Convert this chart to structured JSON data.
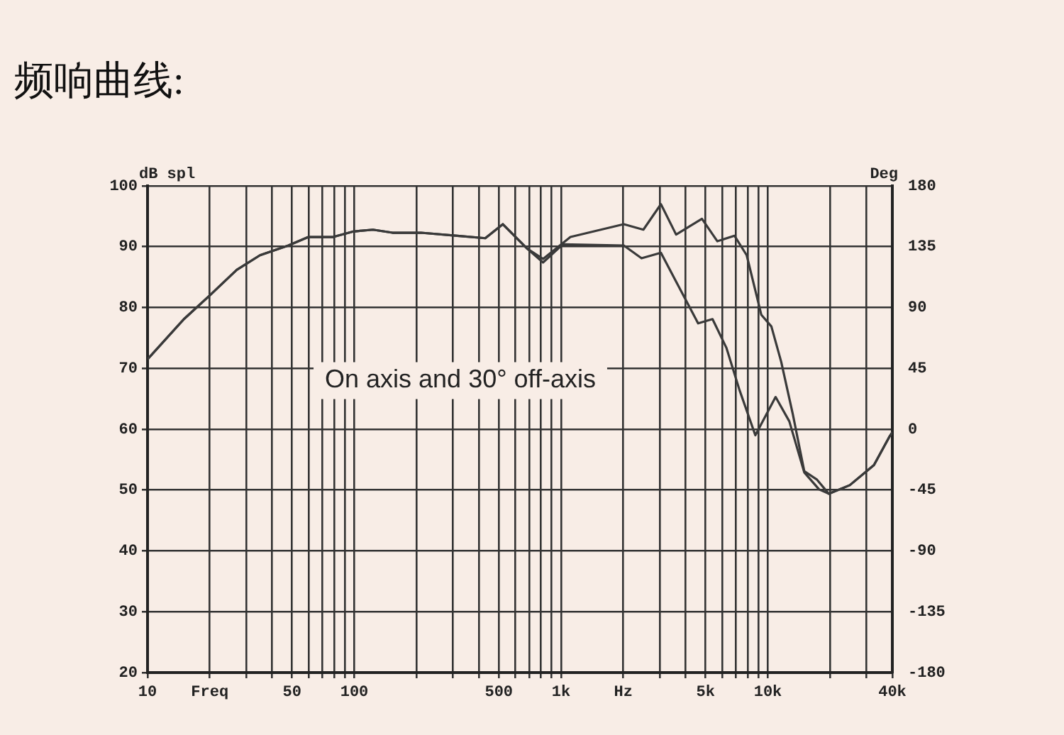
{
  "chart_data": {
    "type": "line",
    "title": "频响曲线:",
    "ylabel": "dB spl",
    "y2label": "Deg",
    "annotations": [
      "On axis and 30° off-axis"
    ],
    "log": "x",
    "grid": true,
    "legend": false,
    "marker": "none",
    "line_style": "solid",
    "xlim": [
      10,
      40000
    ],
    "ylim": [
      20,
      100
    ],
    "y2lim": [
      -180,
      180
    ],
    "xticks": [
      10,
      {
        "value": 20,
        "label": "Freq"
      },
      {
        "value": 30,
        "label": null
      },
      {
        "value": 40,
        "label": null
      },
      50,
      {
        "value": 60,
        "label": null
      },
      {
        "value": 70,
        "label": null
      },
      {
        "value": 80,
        "label": null
      },
      {
        "value": 90,
        "label": null
      },
      100,
      {
        "value": 200,
        "label": null
      },
      {
        "value": 300,
        "label": null
      },
      {
        "value": 400,
        "label": null
      },
      500,
      {
        "value": 600,
        "label": null
      },
      {
        "value": 700,
        "label": null
      },
      {
        "value": 800,
        "label": null
      },
      {
        "value": 900,
        "label": null
      },
      {
        "value": 1000,
        "label": "1k"
      },
      {
        "value": 2000,
        "label": "Hz"
      },
      {
        "value": 3000,
        "label": null
      },
      {
        "value": 4000,
        "label": null
      },
      {
        "value": 5000,
        "label": "5k"
      },
      {
        "value": 6000,
        "label": null
      },
      {
        "value": 7000,
        "label": null
      },
      {
        "value": 8000,
        "label": null
      },
      {
        "value": 9000,
        "label": null
      },
      {
        "value": 10000,
        "label": "10k"
      },
      {
        "value": 20000,
        "label": null
      },
      {
        "value": 30000,
        "label": null
      },
      {
        "value": 40000,
        "label": "40k"
      }
    ],
    "yticks": [
      20,
      30,
      40,
      50,
      60,
      70,
      80,
      90,
      100
    ],
    "y2ticks": [
      -180,
      -135,
      -90,
      -45,
      0,
      45,
      90,
      135,
      180
    ],
    "series": [
      {
        "color": "#3a3a3a",
        "x": [
          10,
          15,
          20,
          27,
          35,
          48,
          60,
          79,
          99,
          123,
          153,
          210,
          315,
          430,
          523,
          685,
          818,
          1110,
          2010,
          2500,
          3040,
          3600,
          4800,
          5700,
          6900,
          7900,
          9300,
          10400,
          11600,
          13200,
          15000,
          17300,
          19700,
          24900,
          32600,
          38600,
          40000
        ],
        "values": [
          71.5,
          78.1,
          82,
          86.2,
          88.6,
          90.2,
          91.6,
          91.6,
          92.5,
          92.8,
          92.3,
          92.3,
          91.8,
          91.4,
          93.7,
          89.7,
          88,
          91.6,
          93.7,
          92.8,
          97,
          92,
          94.6,
          90.9,
          91.8,
          88.6,
          78.8,
          76.9,
          71.1,
          62.5,
          53.1,
          51.7,
          49.4,
          50.8,
          54.1,
          58.7,
          59.5
        ]
      },
      {
        "color": "#3a3a3a",
        "x": [
          10,
          15,
          20,
          27,
          35,
          48,
          60,
          79,
          99,
          123,
          153,
          210,
          315,
          430,
          523,
          685,
          818,
          1020,
          2010,
          2450,
          3040,
          3700,
          4600,
          5400,
          6300,
          7300,
          8700,
          10900,
          12700,
          15000,
          17700,
          19700,
          24900,
          32600,
          38600,
          40000
        ],
        "values": [
          71.5,
          78.1,
          82,
          86.2,
          88.6,
          90.2,
          91.6,
          91.6,
          92.5,
          92.8,
          92.3,
          92.3,
          91.8,
          91.4,
          93.7,
          89.7,
          87.4,
          90.4,
          90.2,
          88.1,
          89,
          83.5,
          77.4,
          78.1,
          73.4,
          66.4,
          59,
          65.3,
          61.3,
          52.9,
          50.1,
          49.4,
          50.8,
          54.1,
          58.7,
          59.5
        ]
      }
    ]
  }
}
